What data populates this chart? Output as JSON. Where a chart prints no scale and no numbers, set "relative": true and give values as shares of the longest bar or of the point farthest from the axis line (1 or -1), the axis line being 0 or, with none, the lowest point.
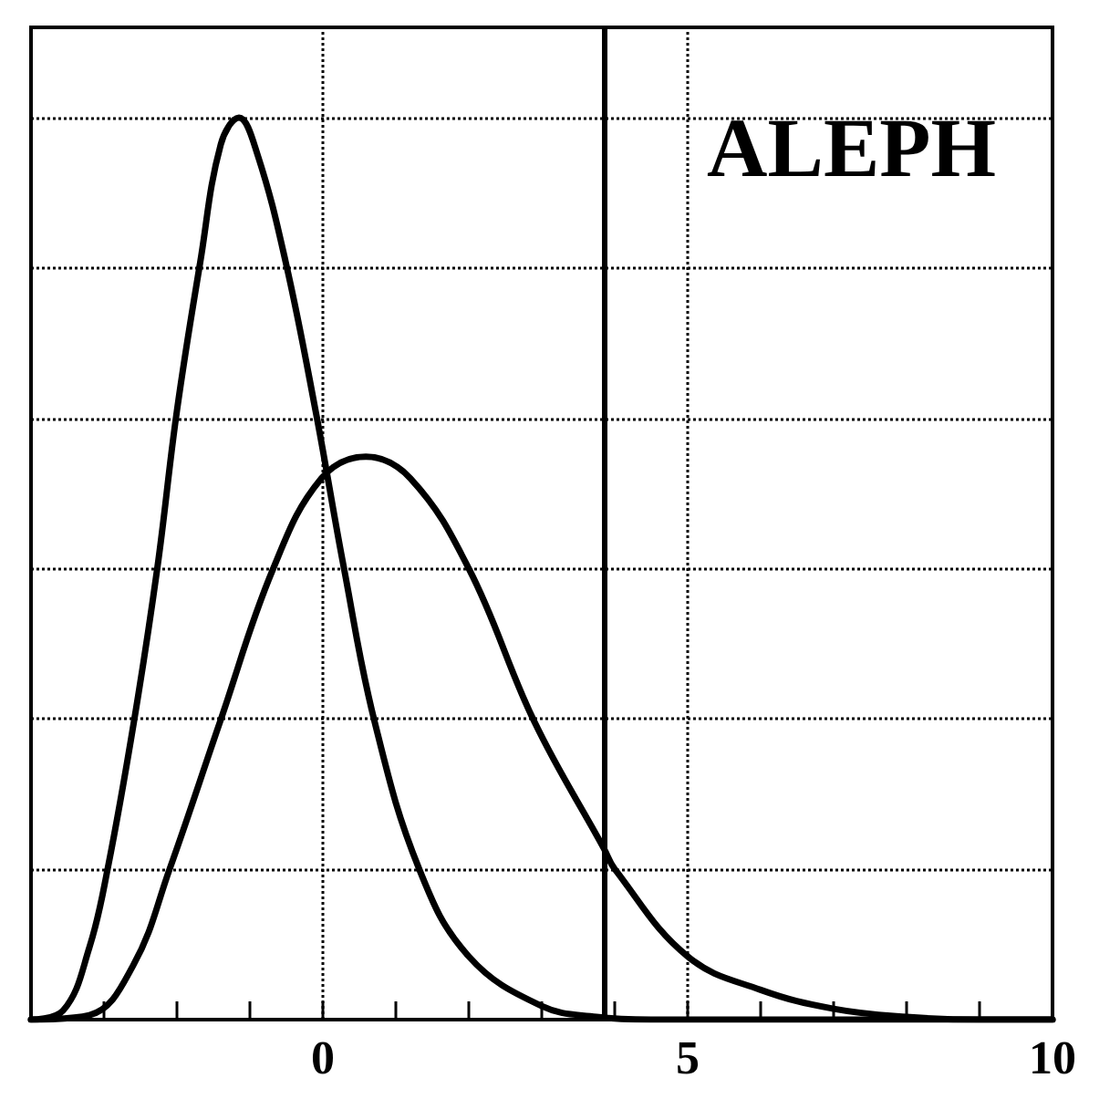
{
  "chart_data": {
    "type": "line",
    "relative": true,
    "xlim": [
      -4,
      10
    ],
    "xticks": [
      {
        "value": -4,
        "label": null
      },
      {
        "value": -3,
        "label": null
      },
      {
        "value": -2,
        "label": null
      },
      {
        "value": -1,
        "label": null
      },
      0,
      {
        "value": 1,
        "label": null
      },
      {
        "value": 2,
        "label": null
      },
      {
        "value": 3,
        "label": null
      },
      {
        "value": 4,
        "label": null
      },
      5,
      {
        "value": 6,
        "label": null
      },
      {
        "value": 7,
        "label": null
      },
      {
        "value": 8,
        "label": null
      },
      {
        "value": 9,
        "label": null
      },
      10
    ],
    "grid": true,
    "marker": "none",
    "line_style": "solid",
    "annotations": [
      "ALEPH"
    ],
    "ref_lines": [
      {
        "axis": "x",
        "value": 3.85,
        "color": "#000000",
        "line_style": "solid"
      }
    ],
    "series": [
      {
        "color": "#000000",
        "x": [
          -4,
          -3.56,
          -3.2,
          -2.95,
          -2.59,
          -2.27,
          -2.0,
          -1.68,
          -1.4,
          -1.15,
          -0.9,
          -0.51,
          -0.1,
          0.29,
          0.71,
          1.32,
          2,
          3,
          3.75,
          4.5,
          10
        ],
        "values": [
          0,
          0.01,
          0.08,
          0.167,
          0.33,
          0.5,
          0.675,
          0.84,
          0.97,
          1,
          0.96,
          0.84,
          0.675,
          0.5,
          0.33,
          0.167,
          0.07,
          0.015,
          0.003,
          0,
          0
        ]
      },
      {
        "color": "#000000",
        "x": [
          -4,
          -3.2,
          -2.6,
          -2.1,
          -1.41,
          -0.68,
          -0.02,
          0.59,
          1.2,
          2.0,
          2.9,
          3.85,
          4.0,
          5,
          6,
          7,
          8,
          9,
          10
        ],
        "values": [
          0,
          0.005,
          0.06,
          0.167,
          0.33,
          0.5,
          0.6,
          0.624,
          0.6,
          0.5,
          0.33,
          0.19,
          0.167,
          0.07,
          0.033,
          0.012,
          0.003,
          0,
          0
        ]
      }
    ]
  }
}
